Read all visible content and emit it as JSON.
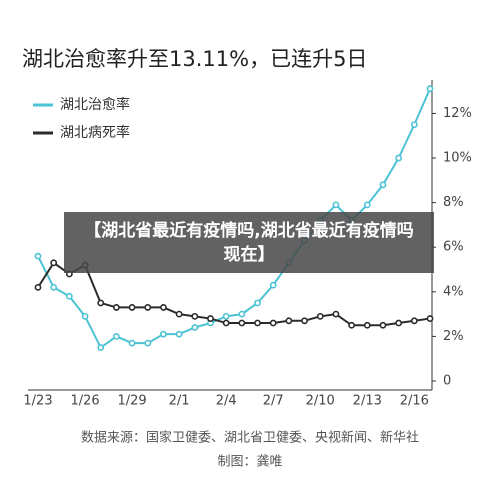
{
  "chart_data": {
    "type": "line",
    "title": "湖北治愈率升至13.11%，已连升5日",
    "categories": [
      "1/23",
      null,
      null,
      "1/26",
      null,
      null,
      "1/29",
      null,
      null,
      "2/1",
      null,
      null,
      "2/4",
      null,
      null,
      "2/7",
      null,
      null,
      "2/10",
      null,
      null,
      "2/13",
      null,
      null,
      "2/16",
      null
    ],
    "series": [
      {
        "name": "湖北治愈率",
        "color": "#4cc3d4",
        "values": [
          5.6,
          4.2,
          3.8,
          2.9,
          1.5,
          2.0,
          1.7,
          1.7,
          2.1,
          2.1,
          2.4,
          2.6,
          2.9,
          3.0,
          3.5,
          4.3,
          5.3,
          6.3,
          7.2,
          7.9,
          7.2,
          7.9,
          8.8,
          10.0,
          11.5,
          13.11
        ]
      },
      {
        "name": "湖北病死率",
        "color": "#2b2b2b",
        "values": [
          4.2,
          5.3,
          4.8,
          5.2,
          3.5,
          3.3,
          3.3,
          3.3,
          3.3,
          3.0,
          2.9,
          2.8,
          2.6,
          2.6,
          2.6,
          2.6,
          2.7,
          2.7,
          2.9,
          3.0,
          2.5,
          2.5,
          2.5,
          2.6,
          2.7,
          2.8
        ]
      }
    ],
    "ylim": [
      0,
      13.5
    ],
    "yticks": [
      0,
      {
        "value": 2,
        "label": "2%"
      },
      {
        "value": 4,
        "label": "4%"
      },
      {
        "value": 6,
        "label": "6%"
      },
      {
        "value": 8,
        "label": "8%"
      },
      {
        "value": 10,
        "label": "10%"
      },
      {
        "value": 12,
        "label": "12%"
      }
    ],
    "legend": "top-left"
  },
  "source": "数据来源：国家卫健委、湖北省卫健委、央视新闻、新华社",
  "credit": "制图：龚唯",
  "banner": "【湖北省最近有疫情吗,湖北省最近有疫情吗现在】"
}
